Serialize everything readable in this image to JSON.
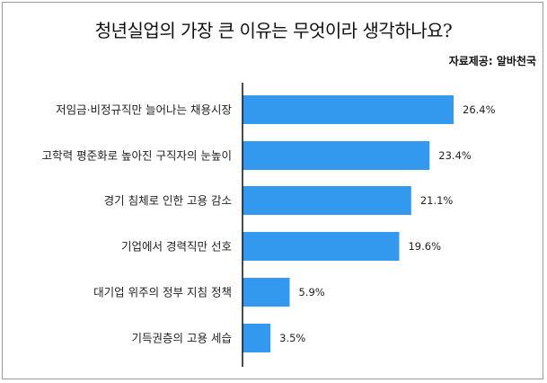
{
  "title": "청년실업의 가장 큰 이유는 무엇이라 생각하나요?",
  "source": "자료제공: 알바천국",
  "chart_data": {
    "type": "bar",
    "orientation": "horizontal",
    "categories": [
      "저임금·비정규직만 늘어나는 채용시장",
      "고학력 평준화로 높아진 구직자의 눈높이",
      "경기 침체로 인한 고용 감소",
      "기업에서 경력직만 선호",
      "대기업 위주의 정부 지침 정책",
      "기득권층의 고용 세습"
    ],
    "values": [
      26.4,
      23.4,
      21.1,
      19.6,
      5.9,
      3.5
    ],
    "value_labels": [
      "26.4%",
      "23.4%",
      "21.1%",
      "19.6%",
      "5.9%",
      "3.5%"
    ],
    "xlim": [
      0,
      26.4
    ],
    "grid": false,
    "legend": "none",
    "bar_color": "#3399ee"
  }
}
